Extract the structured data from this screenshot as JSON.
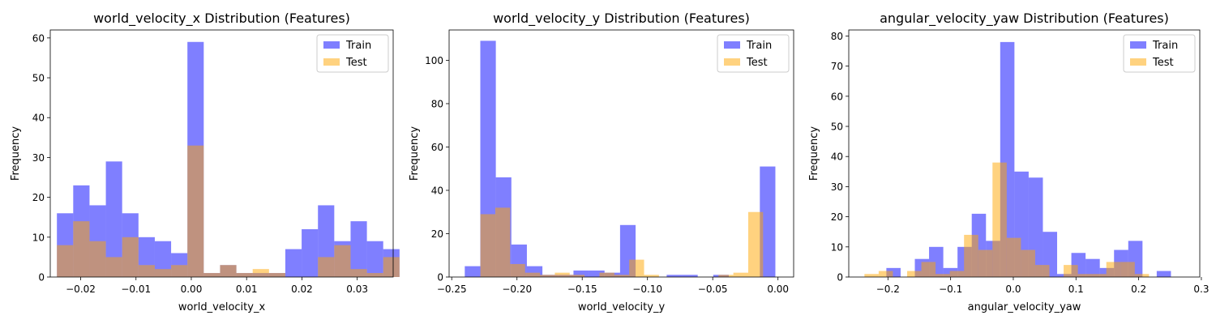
{
  "figure": {
    "background": "#ffffff"
  },
  "chart_data": [
    {
      "type": "histogram",
      "title": "world_velocity_x Distribution (Features)",
      "xlabel": "world_velocity_x",
      "ylabel": "Frequency",
      "xlim": [
        -0.0255,
        0.0365
      ],
      "ylim": [
        0,
        62
      ],
      "xticks": [
        -0.02,
        -0.01,
        0.0,
        0.01,
        0.02,
        0.03
      ],
      "xtick_labels": [
        "−0.02",
        "−0.01",
        "0.00",
        "0.01",
        "0.02",
        "0.03"
      ],
      "yticks": [
        0,
        10,
        20,
        30,
        40,
        50,
        60
      ],
      "ytick_labels": [
        "0",
        "10",
        "20",
        "30",
        "40",
        "50",
        "60"
      ],
      "legend_position": "upper right",
      "series": [
        {
          "name": "Train",
          "color": "#0000ff",
          "alpha": 0.5,
          "bin_start": -0.0243,
          "bin_width": 0.00295,
          "values": [
            16,
            23,
            18,
            29,
            16,
            10,
            9,
            6,
            59,
            1,
            3,
            1,
            1,
            1,
            7,
            12,
            18,
            9,
            14,
            9,
            7
          ]
        },
        {
          "name": "Test",
          "color": "#ffa500",
          "alpha": 0.5,
          "bin_start": -0.0243,
          "bin_width": 0.00295,
          "values": [
            8,
            14,
            9,
            5,
            10,
            3,
            2,
            3,
            33,
            1,
            3,
            1,
            2,
            1,
            0,
            0,
            5,
            8,
            2,
            1,
            5
          ]
        }
      ]
    },
    {
      "type": "histogram",
      "title": "world_velocity_y Distribution (Features)",
      "xlabel": "world_velocity_y",
      "ylabel": "Frequency",
      "xlim": [
        -0.252,
        0.012
      ],
      "ylim": [
        0,
        114
      ],
      "xticks": [
        -0.25,
        -0.2,
        -0.15,
        -0.1,
        -0.05,
        0.0
      ],
      "xtick_labels": [
        "−0.25",
        "−0.20",
        "−0.15",
        "−0.10",
        "−0.05",
        "0.00"
      ],
      "yticks": [
        0,
        20,
        40,
        60,
        80,
        100
      ],
      "ytick_labels": [
        "0",
        "20",
        "40",
        "60",
        "80",
        "100"
      ],
      "legend_position": "upper right",
      "series": [
        {
          "name": "Train",
          "color": "#0000ff",
          "alpha": 0.5,
          "bin_start": -0.24,
          "bin_width": 0.0119,
          "values": [
            5,
            109,
            46,
            15,
            5,
            1,
            1,
            3,
            3,
            2,
            24,
            0,
            0,
            1,
            1,
            0,
            1,
            0,
            0,
            51
          ]
        },
        {
          "name": "Test",
          "color": "#ffa500",
          "alpha": 0.5,
          "bin_start": -0.228,
          "bin_width": 0.0114,
          "values": [
            29,
            32,
            6,
            2,
            1,
            2,
            1,
            0,
            2,
            1,
            8,
            1,
            0,
            0,
            0,
            0,
            1,
            2,
            30
          ]
        }
      ]
    },
    {
      "type": "histogram",
      "title": "angular_velocity_yaw Distribution (Features)",
      "xlabel": "angular_velocity_yaw",
      "ylabel": "Frequency",
      "xlim": [
        -0.2625,
        0.2975
      ],
      "ylim": [
        0,
        82
      ],
      "xticks": [
        -0.2,
        -0.1,
        0.0,
        0.1,
        0.2,
        0.3
      ],
      "xtick_labels": [
        "−0.2",
        "−0.1",
        "0.0",
        "0.1",
        "0.2",
        "0.3"
      ],
      "yticks": [
        0,
        10,
        20,
        30,
        40,
        50,
        60,
        70,
        80
      ],
      "ytick_labels": [
        "0",
        "10",
        "20",
        "30",
        "40",
        "50",
        "60",
        "70",
        "80"
      ],
      "legend_position": "upper right",
      "series": [
        {
          "name": "Train",
          "color": "#0000ff",
          "alpha": 0.5,
          "bin_start": -0.2025,
          "bin_width": 0.0227,
          "values": [
            3,
            0,
            6,
            10,
            3,
            10,
            21,
            12,
            78,
            35,
            33,
            15,
            1,
            8,
            6,
            3,
            9,
            12,
            0,
            2
          ]
        },
        {
          "name": "Test",
          "color": "#ffa500",
          "alpha": 0.5,
          "bin_start": -0.2375,
          "bin_width": 0.0227,
          "values": [
            1,
            2,
            0,
            2,
            5,
            1,
            2,
            14,
            9,
            38,
            13,
            9,
            4,
            0,
            4,
            1,
            1,
            5,
            5,
            1
          ]
        }
      ]
    }
  ]
}
